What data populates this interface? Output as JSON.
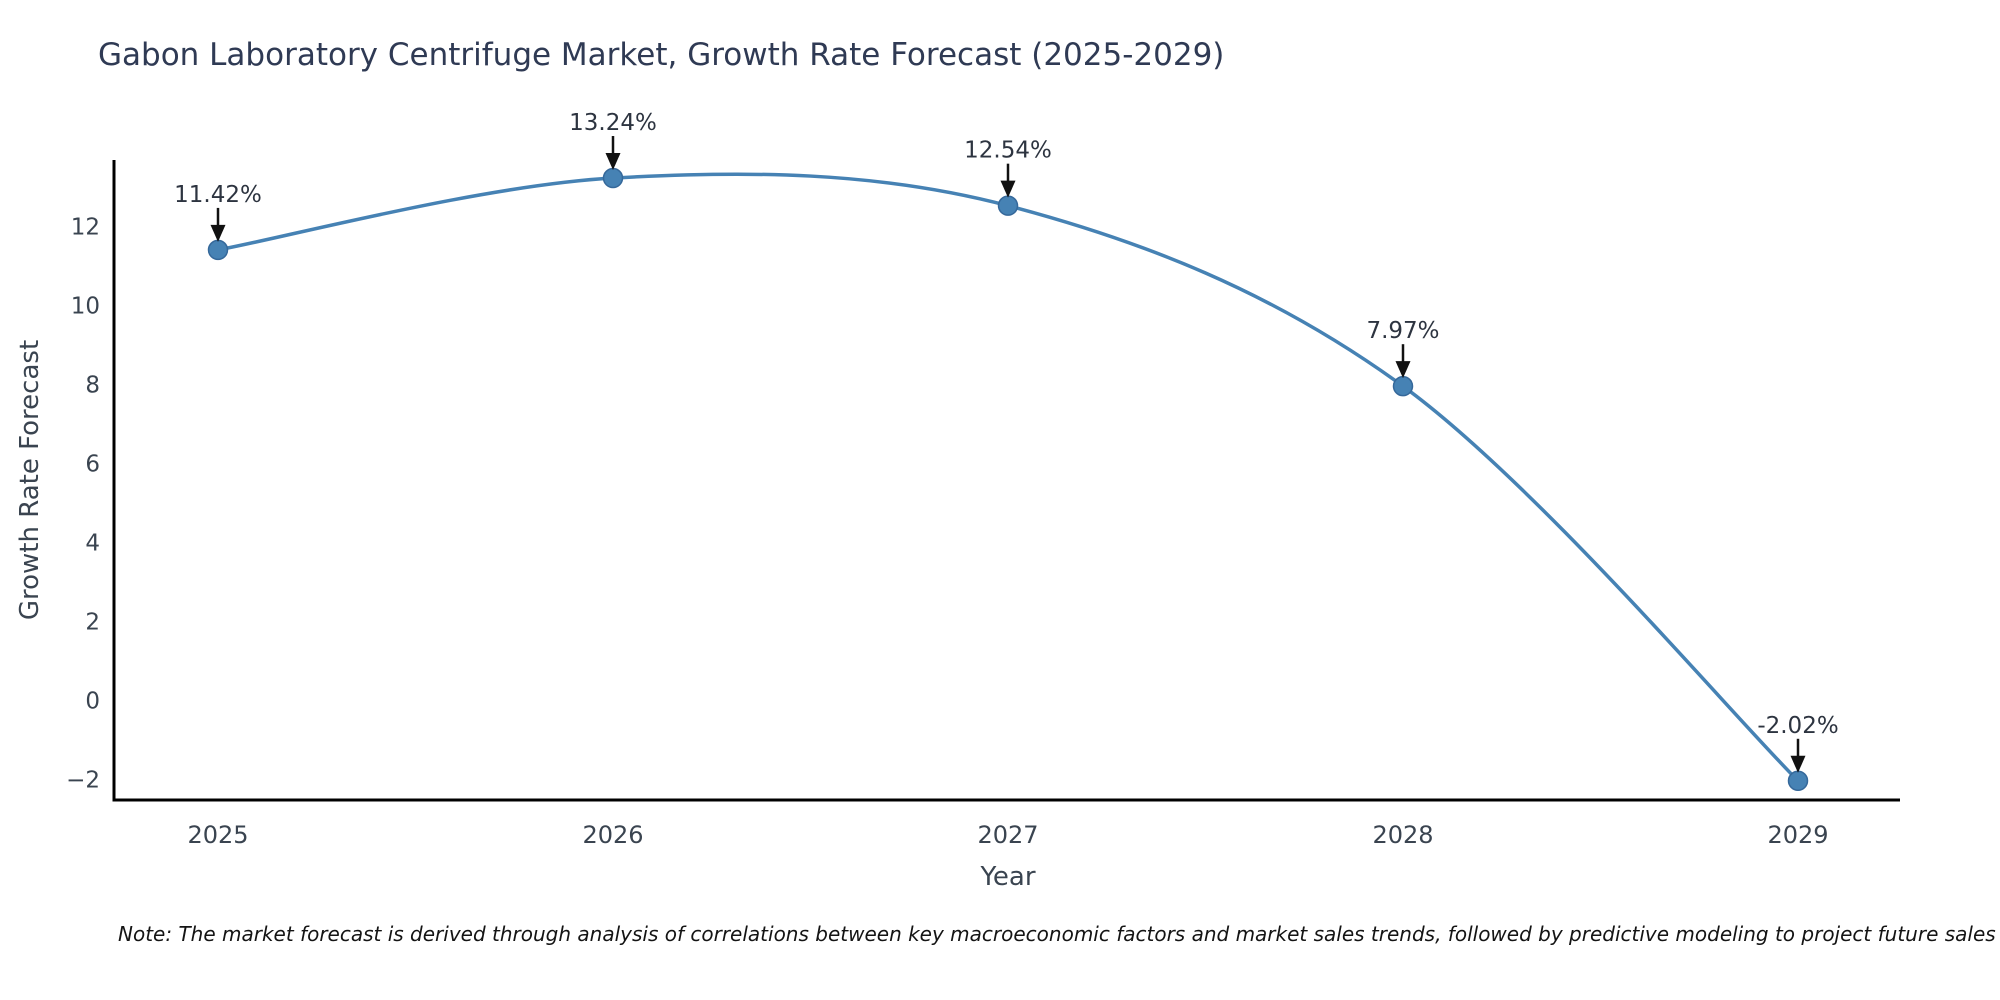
{
  "chart_data": {
    "type": "line",
    "title": "Gabon Laboratory Centrifuge Market, Growth Rate Forecast (2025-2029)",
    "xlabel": "Year",
    "ylabel": "Growth Rate Forecast",
    "categories": [
      "2025",
      "2026",
      "2027",
      "2028",
      "2029"
    ],
    "series": [
      {
        "name": "Growth Rate Forecast",
        "values": [
          11.42,
          13.24,
          12.54,
          7.97,
          -2.02
        ],
        "point_labels": [
          "11.42%",
          "13.24%",
          "12.54%",
          "7.97%",
          "-2.02%"
        ]
      }
    ],
    "yticks": [
      -2,
      0,
      2,
      4,
      6,
      8,
      10,
      12
    ],
    "ylim": [
      -2.55,
      13.75
    ],
    "grid": false,
    "legend_position": "none",
    "line_color": "#4682b4",
    "marker_color": "#4682b4",
    "marker_edge_color": "#35689a",
    "annotation_color": "#2d3440",
    "arrow_color": "#111111",
    "axis_color": "#000000",
    "tick_label_color": "#3a4450",
    "note": "Note: The market forecast is derived through analysis of correlations between key macroeconomic factors and market sales trends, followed by predictive modeling to project future sales"
  }
}
